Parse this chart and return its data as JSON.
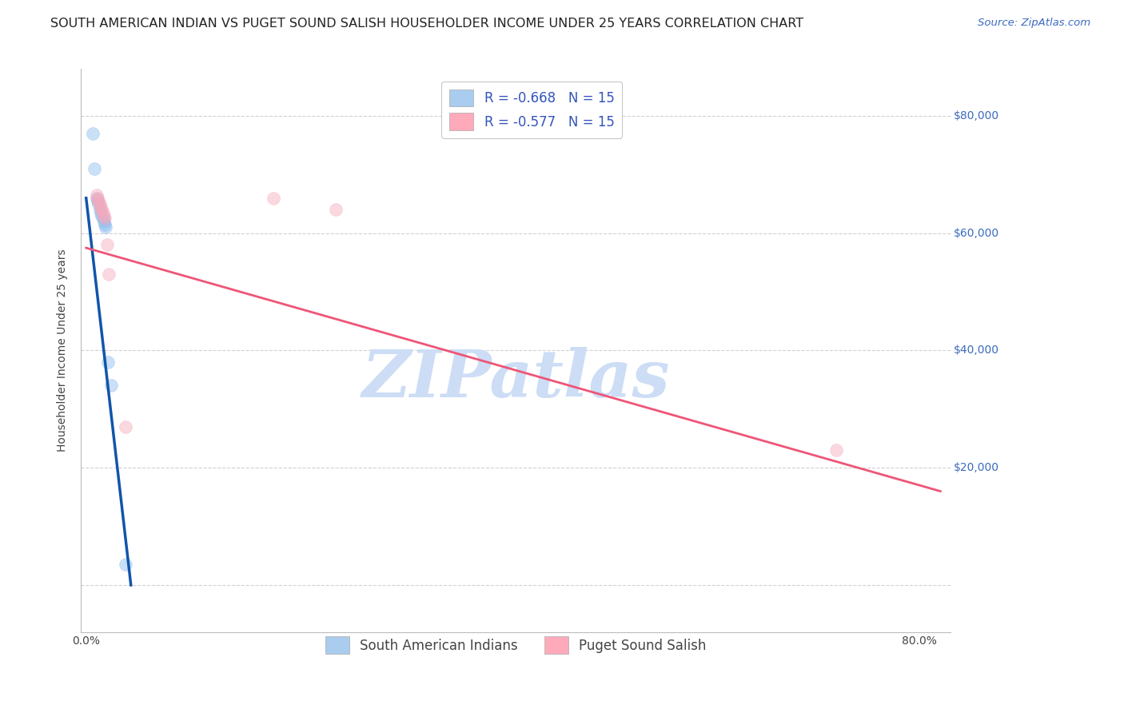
{
  "title": "SOUTH AMERICAN INDIAN VS PUGET SOUND SALISH HOUSEHOLDER INCOME UNDER 25 YEARS CORRELATION CHART",
  "source": "Source: ZipAtlas.com",
  "ylabel": "Householder Income Under 25 years",
  "y_ticks": [
    0,
    20000,
    40000,
    60000,
    80000
  ],
  "y_tick_labels": [
    "",
    "$20,000",
    "$40,000",
    "$60,000",
    "$80,000"
  ],
  "xlim": [
    -0.005,
    0.83
  ],
  "ylim": [
    -8000,
    88000
  ],
  "watermark": "ZIPatlas",
  "blue_scatter": [
    [
      0.006,
      77000
    ],
    [
      0.008,
      71000
    ],
    [
      0.01,
      66000
    ],
    [
      0.011,
      65500
    ],
    [
      0.012,
      65000
    ],
    [
      0.013,
      64000
    ],
    [
      0.014,
      63500
    ],
    [
      0.015,
      63000
    ],
    [
      0.016,
      62500
    ],
    [
      0.017,
      62000
    ],
    [
      0.018,
      61500
    ],
    [
      0.019,
      61000
    ],
    [
      0.021,
      38000
    ],
    [
      0.024,
      34000
    ],
    [
      0.038,
      3500
    ]
  ],
  "pink_scatter": [
    [
      0.01,
      66500
    ],
    [
      0.011,
      66000
    ],
    [
      0.012,
      65500
    ],
    [
      0.013,
      65000
    ],
    [
      0.014,
      64500
    ],
    [
      0.015,
      64000
    ],
    [
      0.016,
      63500
    ],
    [
      0.017,
      63000
    ],
    [
      0.018,
      62500
    ],
    [
      0.02,
      58000
    ],
    [
      0.022,
      53000
    ],
    [
      0.038,
      27000
    ],
    [
      0.18,
      66000
    ],
    [
      0.24,
      64000
    ],
    [
      0.72,
      23000
    ]
  ],
  "blue_line_x": [
    0.0,
    0.043
  ],
  "blue_line_y": [
    66000,
    0
  ],
  "pink_line_x": [
    0.0,
    0.82
  ],
  "pink_line_y": [
    57500,
    16000
  ],
  "scatter_size": 130,
  "scatter_alpha": 0.45,
  "blue_scatter_color": "#88bbee",
  "pink_scatter_color": "#f8aabb",
  "blue_line_color": "#1155aa",
  "pink_line_color": "#ee5577",
  "title_fontsize": 11.5,
  "source_fontsize": 9.5,
  "axis_label_fontsize": 10,
  "tick_fontsize": 10,
  "legend_fontsize": 12,
  "legend_box_blue": "#aaccee",
  "legend_box_pink": "#ffaabb",
  "legend_text_color": "#3355bb",
  "bottom_legend_items": [
    {
      "label": "South American Indians",
      "color": "#aaccee"
    },
    {
      "label": "Puget Sound Salish",
      "color": "#ffaabb"
    }
  ],
  "grid_color": "#cccccc",
  "grid_style": "--",
  "bg_color": "#ffffff",
  "watermark_color": "#ccddf5",
  "watermark_fontsize": 60,
  "right_label_color": "#3b6bbf"
}
